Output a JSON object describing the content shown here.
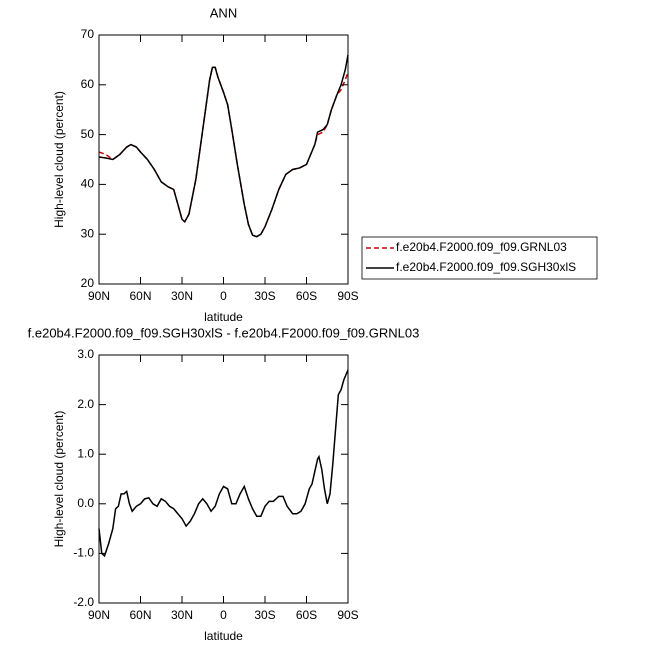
{
  "chart_data": [
    {
      "type": "line",
      "title": "ANN",
      "xlabel": "latitude",
      "ylabel": "High-level cloud (percent)",
      "x": [
        90,
        85,
        80,
        75,
        70,
        67,
        63,
        60,
        55,
        50,
        45,
        40,
        36,
        33,
        30,
        28,
        25,
        20,
        15,
        12,
        10,
        8,
        6,
        4,
        2,
        0,
        -3,
        -6,
        -10,
        -15,
        -18,
        -21,
        -24,
        -27,
        -30,
        -35,
        -40,
        -45,
        -50,
        -55,
        -60,
        -63,
        -66,
        -68,
        -72,
        -75,
        -78,
        -82,
        -85,
        -88,
        -90
      ],
      "series": [
        {
          "name": "f.e20b4.F2000.f09_f09.GRNL03",
          "color": "#cc0000",
          "style": "dashed",
          "values": [
            46.5,
            46,
            45,
            46,
            47.5,
            48,
            47.5,
            46.5,
            45,
            43,
            40.5,
            39.5,
            39,
            36,
            33,
            32.5,
            34,
            41,
            51,
            57,
            61,
            63.5,
            63.5,
            61.5,
            60,
            58.5,
            56,
            51,
            44,
            36,
            32,
            29.8,
            29.5,
            30,
            31.5,
            35,
            39,
            42,
            43,
            43.3,
            44,
            46,
            48,
            50,
            50.5,
            52,
            55,
            58,
            59,
            61,
            62.5
          ]
        },
        {
          "name": "f.e20b4.F2000.f09_f09.SGH30xlS",
          "color": "#000000",
          "style": "solid",
          "values": [
            45.5,
            45.3,
            45,
            46,
            47.5,
            48,
            47.5,
            46.5,
            45,
            43,
            40.5,
            39.5,
            39,
            36,
            33,
            32.5,
            34,
            41,
            51,
            57,
            61,
            63.5,
            63.5,
            61.5,
            60,
            58.5,
            56,
            51,
            44,
            36,
            32,
            29.8,
            29.5,
            30,
            31.5,
            35,
            39,
            42,
            43,
            43.3,
            44,
            46,
            48,
            50.5,
            51,
            52,
            55,
            58,
            60,
            63,
            66
          ]
        }
      ],
      "xlim": [
        90,
        -90
      ],
      "xticks": [
        {
          "value": 90,
          "label": "90N"
        },
        {
          "value": 60,
          "label": "60N"
        },
        {
          "value": 30,
          "label": "30N"
        },
        0,
        {
          "value": -30,
          "label": "30S"
        },
        {
          "value": -60,
          "label": "60S"
        },
        {
          "value": -90,
          "label": "90S"
        }
      ],
      "ylim": [
        20,
        70
      ],
      "yticks": [
        20,
        30,
        40,
        50,
        60,
        70
      ],
      "legend": "outside-right"
    },
    {
      "type": "line",
      "title": "f.e20b4.F2000.f09_f09.SGH30xlS - f.e20b4.F2000.f09_f09.GRNL03",
      "xlabel": "latitude",
      "ylabel": "High-level cloud (percent)",
      "x": [
        90,
        88,
        86,
        83,
        80,
        78,
        76,
        74,
        72,
        70,
        68,
        66,
        63,
        60,
        57,
        54,
        51,
        48,
        45,
        42,
        39,
        36,
        33,
        30,
        27,
        24,
        21,
        18,
        15,
        12,
        9,
        6,
        3,
        0,
        -3,
        -6,
        -9,
        -12,
        -15,
        -18,
        -21,
        -24,
        -27,
        -30,
        -33,
        -36,
        -40,
        -43,
        -46,
        -50,
        -53,
        -56,
        -59,
        -62,
        -64,
        -66,
        -68,
        -69,
        -71,
        -73,
        -75,
        -77,
        -79,
        -81,
        -83,
        -85,
        -87,
        -90
      ],
      "series": [
        {
          "color": "#000000",
          "style": "solid",
          "values": [
            -0.5,
            -1.0,
            -1.05,
            -0.8,
            -0.5,
            -0.1,
            -0.05,
            0.2,
            0.2,
            0.25,
            0.0,
            -0.15,
            -0.05,
            0.0,
            0.1,
            0.12,
            0.0,
            -0.05,
            0.1,
            0.05,
            -0.05,
            -0.1,
            -0.2,
            -0.3,
            -0.45,
            -0.35,
            -0.2,
            0.0,
            0.1,
            0.0,
            -0.15,
            -0.05,
            0.2,
            0.35,
            0.3,
            0.0,
            0.0,
            0.2,
            0.35,
            0.1,
            -0.1,
            -0.25,
            -0.25,
            -0.05,
            0.05,
            0.05,
            0.15,
            0.15,
            -0.05,
            -0.2,
            -0.2,
            -0.15,
            0.0,
            0.3,
            0.4,
            0.65,
            0.9,
            0.95,
            0.7,
            0.3,
            0.0,
            0.2,
            0.8,
            1.5,
            2.2,
            2.3,
            2.5,
            2.7
          ]
        }
      ],
      "xlim": [
        90,
        -90
      ],
      "xticks": [
        {
          "value": 90,
          "label": "90N"
        },
        {
          "value": 60,
          "label": "60N"
        },
        {
          "value": 30,
          "label": "30N"
        },
        0,
        {
          "value": -30,
          "label": "30S"
        },
        {
          "value": -60,
          "label": "60S"
        },
        {
          "value": -90,
          "label": "90S"
        }
      ],
      "ylim": [
        -2,
        3
      ],
      "yticks": [
        {
          "value": -2,
          "label": "-2.0"
        },
        {
          "value": -1,
          "label": "-1.0"
        },
        {
          "value": 0,
          "label": "0.0"
        },
        {
          "value": 1,
          "label": "1.0"
        },
        {
          "value": 2,
          "label": "2.0"
        },
        {
          "value": 3,
          "label": "3.0"
        }
      ]
    }
  ]
}
